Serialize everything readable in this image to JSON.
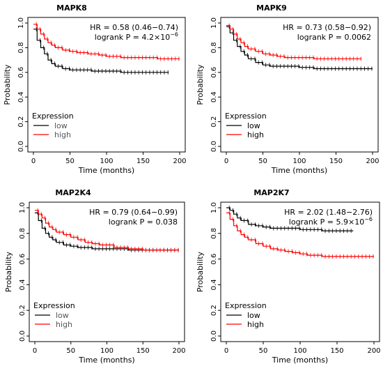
{
  "chart_data": [
    {
      "type": "line",
      "title": "MAPK8",
      "xlabel": "Time (months)",
      "ylabel": "Probability",
      "xlim": [
        0,
        200
      ],
      "ylim": [
        0,
        1
      ],
      "xticks": [
        "0",
        "50",
        "100",
        "150",
        "200"
      ],
      "yticks": [
        "0.0",
        "0.2",
        "0.4",
        "0.6",
        "0.8",
        "1.0"
      ],
      "annotation": {
        "hr": "HR = 0.58 (0.46−0.74)",
        "p_base": "logrank P = 4.2×10",
        "p_exp": "−6"
      },
      "legend": {
        "title": "Expression",
        "position": "bottom-left",
        "label_color": "#555555"
      },
      "series": [
        {
          "name": "low",
          "color": "#000000",
          "x": [
            0,
            5,
            10,
            15,
            20,
            25,
            30,
            40,
            50,
            60,
            80,
            100,
            120,
            150,
            185
          ],
          "y": [
            0.95,
            0.86,
            0.8,
            0.75,
            0.7,
            0.67,
            0.65,
            0.63,
            0.62,
            0.62,
            0.61,
            0.61,
            0.6,
            0.6,
            0.6
          ]
        },
        {
          "name": "high",
          "color": "#ff0000",
          "x": [
            0,
            5,
            10,
            15,
            20,
            25,
            30,
            40,
            50,
            60,
            75,
            90,
            100,
            120,
            150,
            170,
            200
          ],
          "y": [
            0.99,
            0.95,
            0.91,
            0.87,
            0.84,
            0.82,
            0.8,
            0.78,
            0.77,
            0.76,
            0.75,
            0.74,
            0.73,
            0.72,
            0.72,
            0.71,
            0.71
          ]
        }
      ]
    },
    {
      "type": "line",
      "title": "MAPK9",
      "xlabel": "Time (months)",
      "ylabel": "Probability",
      "xlim": [
        0,
        200
      ],
      "ylim": [
        0,
        1
      ],
      "xticks": [
        "0",
        "50",
        "100",
        "150",
        "200"
      ],
      "yticks": [
        "0.0",
        "0.2",
        "0.4",
        "0.6",
        "0.8",
        "1.0"
      ],
      "annotation": {
        "hr": "HR = 0.73 (0.58−0.92)",
        "p_base": "logrank P = 0.0062",
        "p_exp": ""
      },
      "legend": {
        "title": "Expression",
        "position": "bottom-left",
        "label_color": "#000000"
      },
      "series": [
        {
          "name": "low",
          "color": "#000000",
          "x": [
            0,
            5,
            10,
            15,
            20,
            25,
            30,
            40,
            50,
            60,
            80,
            100,
            120,
            150,
            200
          ],
          "y": [
            0.97,
            0.92,
            0.86,
            0.81,
            0.77,
            0.74,
            0.71,
            0.68,
            0.66,
            0.65,
            0.65,
            0.64,
            0.63,
            0.63,
            0.63
          ]
        },
        {
          "name": "high",
          "color": "#ff0000",
          "x": [
            0,
            5,
            10,
            15,
            20,
            25,
            30,
            40,
            50,
            60,
            70,
            80,
            100,
            120,
            150,
            185
          ],
          "y": [
            0.98,
            0.95,
            0.91,
            0.87,
            0.84,
            0.81,
            0.79,
            0.77,
            0.75,
            0.74,
            0.73,
            0.72,
            0.72,
            0.71,
            0.71,
            0.71
          ]
        }
      ]
    },
    {
      "type": "line",
      "title": "MAP2K4",
      "xlabel": "Time (months)",
      "ylabel": "Probability",
      "xlim": [
        0,
        200
      ],
      "ylim": [
        0,
        1
      ],
      "xticks": [
        "0",
        "50",
        "100",
        "150",
        "200"
      ],
      "yticks": [
        "0.0",
        "0.2",
        "0.4",
        "0.6",
        "0.8",
        "1.0"
      ],
      "annotation": {
        "hr": "HR = 0.79 (0.64−0.99)",
        "p_base": "logrank P = 0.038",
        "p_exp": ""
      },
      "legend": {
        "title": "Expression",
        "position": "bottom-left",
        "label_color": "#555555"
      },
      "series": [
        {
          "name": "low",
          "color": "#000000",
          "x": [
            0,
            5,
            10,
            15,
            20,
            25,
            30,
            40,
            50,
            60,
            80,
            100,
            130,
            170,
            200
          ],
          "y": [
            0.96,
            0.9,
            0.84,
            0.8,
            0.77,
            0.75,
            0.73,
            0.71,
            0.7,
            0.69,
            0.68,
            0.68,
            0.67,
            0.67,
            0.67
          ]
        },
        {
          "name": "high",
          "color": "#ff0000",
          "x": [
            0,
            5,
            10,
            15,
            20,
            25,
            30,
            40,
            50,
            60,
            70,
            80,
            90,
            100,
            110,
            130,
            150,
            200
          ],
          "y": [
            0.98,
            0.95,
            0.92,
            0.88,
            0.85,
            0.83,
            0.81,
            0.79,
            0.77,
            0.75,
            0.73,
            0.72,
            0.71,
            0.71,
            0.69,
            0.68,
            0.67,
            0.67
          ]
        }
      ]
    },
    {
      "type": "line",
      "title": "MAP2K7",
      "xlabel": "Time (months)",
      "ylabel": "Probability",
      "xlim": [
        0,
        200
      ],
      "ylim": [
        0,
        1
      ],
      "xticks": [
        "0",
        "50",
        "100",
        "150",
        "200"
      ],
      "yticks": [
        "0.0",
        "0.2",
        "0.4",
        "0.6",
        "0.8",
        "1.0"
      ],
      "annotation": {
        "hr": "HR = 2.02 (1.48−2.76)",
        "p_base": "logrank P = 5.9×10",
        "p_exp": "−6"
      },
      "legend": {
        "title": "Expression",
        "position": "bottom-left",
        "label_color": "#000000"
      },
      "series": [
        {
          "name": "low",
          "color": "#000000",
          "x": [
            0,
            5,
            10,
            15,
            20,
            30,
            40,
            50,
            60,
            80,
            100,
            130,
            172
          ],
          "y": [
            1.0,
            0.98,
            0.95,
            0.92,
            0.9,
            0.87,
            0.86,
            0.85,
            0.84,
            0.84,
            0.83,
            0.82,
            0.82
          ]
        },
        {
          "name": "high",
          "color": "#ff0000",
          "x": [
            0,
            5,
            10,
            15,
            20,
            25,
            30,
            40,
            50,
            60,
            70,
            80,
            90,
            100,
            110,
            130,
            150,
            200
          ],
          "y": [
            0.96,
            0.91,
            0.86,
            0.82,
            0.79,
            0.77,
            0.75,
            0.72,
            0.7,
            0.68,
            0.67,
            0.66,
            0.65,
            0.64,
            0.63,
            0.62,
            0.62,
            0.62
          ]
        }
      ]
    }
  ]
}
